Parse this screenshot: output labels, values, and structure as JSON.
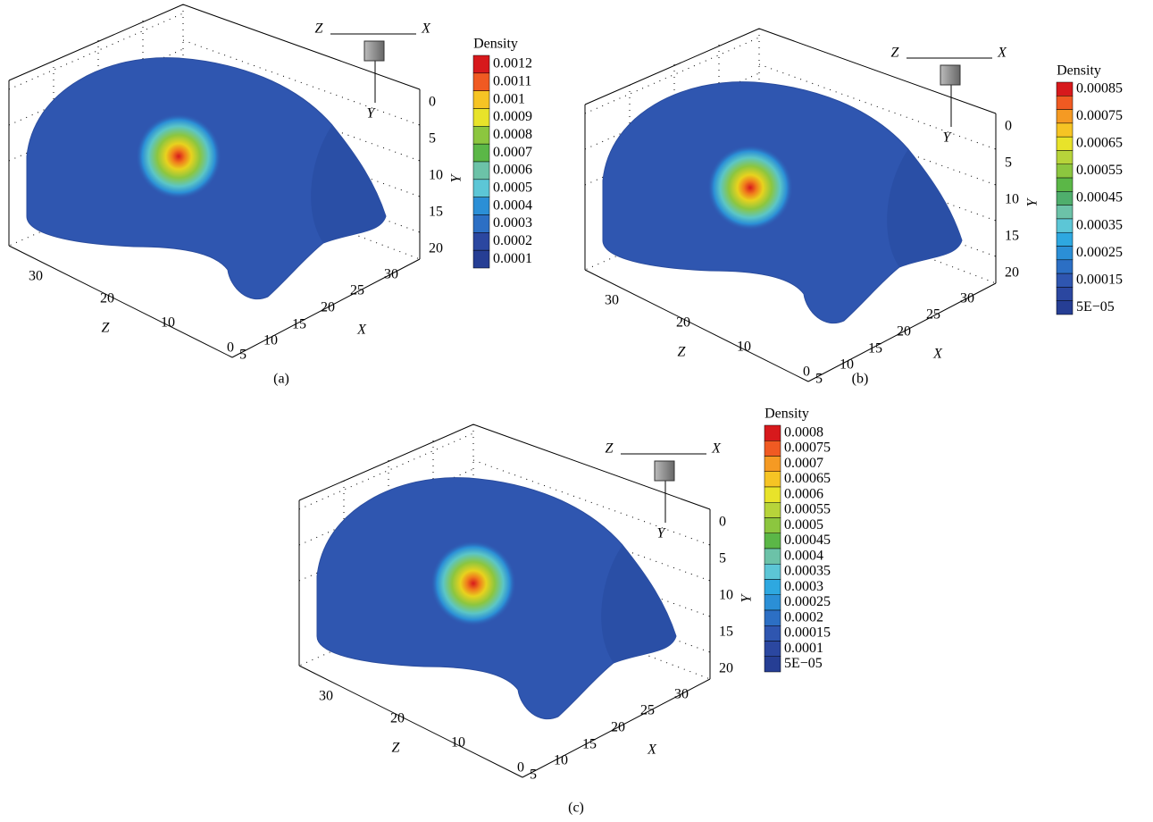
{
  "panels": [
    {
      "caption": "(a)",
      "orientation": {
        "x": "X",
        "y": "Y",
        "z": "Z"
      },
      "axes": {
        "y_label": "Y",
        "y_ticks": [
          "0",
          "5",
          "10",
          "15",
          "20"
        ],
        "z_label": "Z",
        "z_ticks": [
          "30",
          "20",
          "10",
          "0"
        ],
        "x_label": "X",
        "x_ticks": [
          "5",
          "10",
          "15",
          "20",
          "25",
          "30"
        ]
      },
      "legend": {
        "title": "Density",
        "levels": [
          "0.0012",
          "0.0011",
          "0.001",
          "0.0009",
          "0.0008",
          "0.0007",
          "0.0006",
          "0.0005",
          "0.0004",
          "0.0003",
          "0.0002",
          "0.0001"
        ]
      }
    },
    {
      "caption": "(b)",
      "orientation": {
        "x": "X",
        "y": "Y",
        "z": "Z"
      },
      "axes": {
        "y_label": "Y",
        "y_ticks": [
          "0",
          "5",
          "10",
          "15",
          "20"
        ],
        "z_label": "Z",
        "z_ticks": [
          "30",
          "20",
          "10",
          "0"
        ],
        "x_label": "X",
        "x_ticks": [
          "5",
          "10",
          "15",
          "20",
          "25",
          "30"
        ]
      },
      "legend": {
        "title": "Density",
        "levels": [
          "0.00085",
          "0.00075",
          "0.00065",
          "0.00055",
          "0.00045",
          "0.00035",
          "0.00025",
          "0.00015",
          "5E−05"
        ]
      }
    },
    {
      "caption": "(c)",
      "orientation": {
        "x": "X",
        "y": "Y",
        "z": "Z"
      },
      "axes": {
        "y_label": "Y",
        "y_ticks": [
          "0",
          "5",
          "10",
          "15",
          "20"
        ],
        "z_label": "Z",
        "z_ticks": [
          "30",
          "20",
          "10",
          "0"
        ],
        "x_label": "X",
        "x_ticks": [
          "5",
          "10",
          "15",
          "20",
          "25",
          "30"
        ]
      },
      "legend": {
        "title": "Density",
        "levels": [
          "0.0008",
          "0.00075",
          "0.0007",
          "0.00065",
          "0.0006",
          "0.00055",
          "0.0005",
          "0.00045",
          "0.0004",
          "0.00035",
          "0.0003",
          "0.00025",
          "0.0002",
          "0.00015",
          "0.0001",
          "5E−05"
        ]
      }
    }
  ]
}
